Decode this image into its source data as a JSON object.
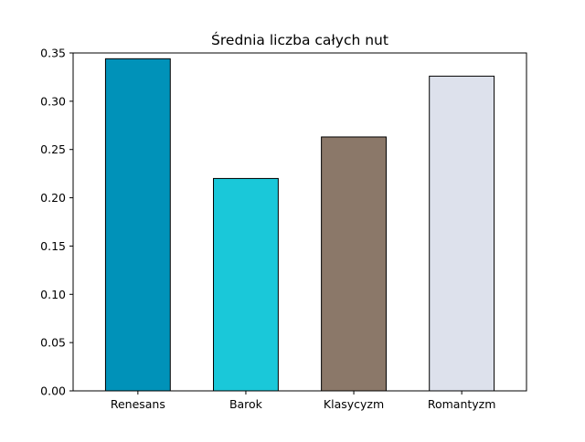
{
  "chart_data": {
    "type": "bar",
    "title": "Średnia liczba całych nut",
    "xlabel": "",
    "ylabel": "",
    "categories": [
      "Renesans",
      "Barok",
      "Klasycyzm",
      "Romantyzm"
    ],
    "values": [
      0.344,
      0.22,
      0.263,
      0.326
    ],
    "colors": [
      "#0092b9",
      "#1ac8d9",
      "#8b7869",
      "#dde1ec"
    ],
    "edge_color": "#000000",
    "ylim": [
      0,
      0.35
    ],
    "yticks": [
      "0.00",
      "0.05",
      "0.10",
      "0.15",
      "0.20",
      "0.25",
      "0.30",
      "0.35"
    ],
    "grid": false,
    "legend": "none"
  }
}
